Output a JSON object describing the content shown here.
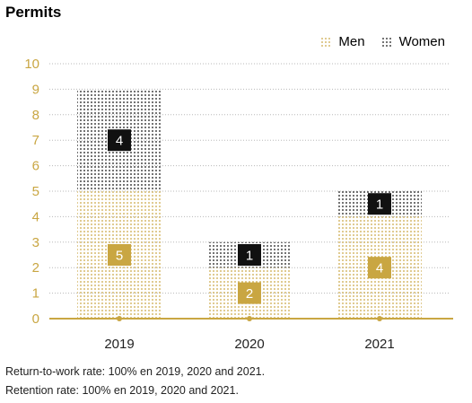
{
  "chart_data": {
    "type": "bar",
    "stacked": true,
    "title": "Permits",
    "categories": [
      "2019",
      "2020",
      "2021"
    ],
    "series": [
      {
        "name": "Men",
        "values": [
          5,
          2,
          4
        ],
        "color": "#c9a642"
      },
      {
        "name": "Women",
        "values": [
          4,
          1,
          1
        ],
        "color": "#111111"
      }
    ],
    "ylim": [
      0,
      10
    ],
    "yticks": [
      "0",
      "1",
      "2",
      "3",
      "4",
      "5",
      "6",
      "7",
      "8",
      "9",
      "10"
    ],
    "grid": true,
    "legend": "top-right"
  },
  "notes": [
    "Return-to-work rate: 100% en 2019, 2020 and 2021.",
    "Retention rate: 100% en 2019, 2020 and 2021."
  ]
}
